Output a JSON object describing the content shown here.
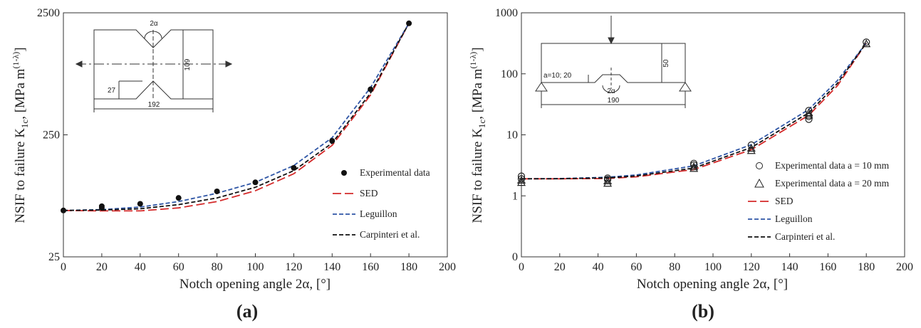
{
  "chart_data": [
    {
      "panel_label": "(a)",
      "type": "scatter",
      "xlabel": "Notch opening angle 2α, [°]",
      "ylabel": "NSIF to failure K",
      "ylabel_sub": "1c",
      "ylabel_units": ", [MPa m",
      "ylabel_exp": "(1-λ)",
      "ylabel_close": "]",
      "xlim": [
        0,
        200
      ],
      "x_ticks": [
        0,
        20,
        40,
        60,
        80,
        100,
        120,
        140,
        160,
        180,
        200
      ],
      "ylim": [
        25,
        2500
      ],
      "y_scale": "log",
      "y_ticks": [
        25,
        250,
        2500
      ],
      "legend_position": "right",
      "points_series": {
        "name": "Experimental data",
        "marker": "filled-circle",
        "x": [
          0,
          20,
          20,
          40,
          60,
          80,
          100,
          120,
          140,
          160,
          180
        ],
        "y": [
          60,
          63,
          65,
          68,
          76,
          86,
          102,
          134,
          223,
          590,
          2050
        ]
      },
      "curves": [
        {
          "name": "SED",
          "color": "#d42a2a",
          "dash": "long",
          "x": [
            0,
            20,
            40,
            60,
            80,
            100,
            120,
            140,
            160,
            180
          ],
          "y": [
            60,
            59.5,
            59.5,
            63,
            71,
            87,
            120,
            205,
            530,
            2050
          ]
        },
        {
          "name": "Leguillon",
          "color": "#2f56a6",
          "dash": "short",
          "x": [
            0,
            20,
            40,
            60,
            80,
            100,
            120,
            140,
            160,
            180
          ],
          "y": [
            60,
            61,
            64,
            71,
            83,
            102,
            140,
            237,
            610,
            2050
          ]
        },
        {
          "name": "Carpinteri et al.",
          "color": "#111111",
          "dash": "short",
          "x": [
            0,
            20,
            40,
            60,
            80,
            100,
            120,
            140,
            160,
            180
          ],
          "y": [
            60,
            60.5,
            62,
            67,
            76,
            93,
            127,
            214,
            550,
            2050
          ]
        }
      ],
      "inset": {
        "angle_label": "2α",
        "height_label": "109",
        "depth_label": "27",
        "length_label": "192"
      }
    },
    {
      "panel_label": "(b)",
      "type": "scatter",
      "xlabel": "Notch opening angle 2α, [°]",
      "ylabel": "NSIF to failure K",
      "ylabel_sub": "1c",
      "ylabel_units": ", [MPa m",
      "ylabel_exp": "(1-λ)",
      "ylabel_close": "]",
      "xlim": [
        0,
        200
      ],
      "x_ticks": [
        0,
        20,
        40,
        60,
        80,
        100,
        120,
        140,
        160,
        180,
        200
      ],
      "ylim": [
        0.1,
        1000
      ],
      "y_scale": "log",
      "y_ticks": [
        0.1,
        1,
        10,
        100,
        1000
      ],
      "y_tick_labels": [
        "0",
        "1",
        "10",
        "100",
        "1000"
      ],
      "legend_position": "right",
      "points_series": [
        {
          "name": "Experimental data a = 10 mm",
          "marker": "open-circle",
          "x": [
            0,
            0,
            45,
            45,
            90,
            90,
            120,
            150,
            150,
            150,
            180
          ],
          "y": [
            2.1,
            1.9,
            1.95,
            1.85,
            3.4,
            3.2,
            6.8,
            25,
            20,
            18,
            330
          ]
        },
        {
          "name": "Experimental data a = 20 mm",
          "marker": "open-triangle",
          "x": [
            0,
            0,
            45,
            45,
            90,
            90,
            120,
            120,
            150,
            150,
            180
          ],
          "y": [
            1.8,
            1.65,
            1.75,
            1.6,
            3.0,
            2.8,
            6.0,
            5.5,
            23,
            21,
            310
          ]
        }
      ],
      "curves": [
        {
          "name": "SED",
          "color": "#d42a2a",
          "dash": "long",
          "x": [
            0,
            20,
            45,
            60,
            90,
            120,
            150,
            165,
            180
          ],
          "y": [
            1.9,
            1.9,
            1.93,
            2.05,
            2.7,
            5.7,
            21,
            64,
            320
          ]
        },
        {
          "name": "Leguillon",
          "color": "#2f56a6",
          "dash": "short",
          "x": [
            0,
            20,
            45,
            60,
            90,
            120,
            150,
            165,
            180
          ],
          "y": [
            1.9,
            1.92,
            2.02,
            2.2,
            3.1,
            6.9,
            26,
            78,
            320
          ]
        },
        {
          "name": "Carpinteri et al.",
          "color": "#111111",
          "dash": "short",
          "x": [
            0,
            20,
            45,
            60,
            90,
            120,
            150,
            165,
            180
          ],
          "y": [
            1.9,
            1.91,
            1.97,
            2.12,
            2.85,
            6.2,
            23,
            70,
            320
          ]
        }
      ],
      "inset": {
        "notch_label": "a=10; 20",
        "angle_label": "2α",
        "height_label": "50",
        "length_label": "190"
      }
    }
  ]
}
